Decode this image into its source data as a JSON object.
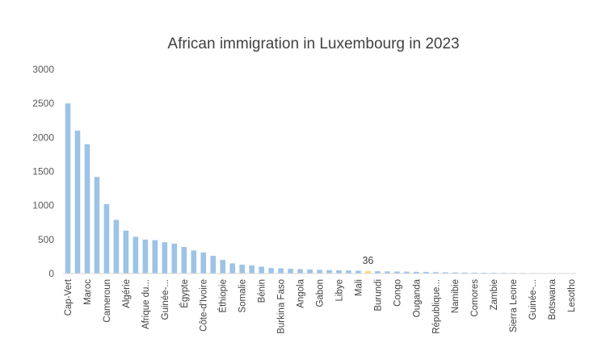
{
  "chart_data": {
    "type": "bar",
    "title": "African immigration in Luxembourg in 2023",
    "xlabel": "",
    "ylabel": "",
    "ylim": [
      0,
      3000
    ],
    "yticks": [
      0,
      500,
      1000,
      1500,
      2000,
      2500,
      3000
    ],
    "ytick_labels": [
      "0",
      "500",
      "1000",
      "1500",
      "2000",
      "2500",
      "3000"
    ],
    "grid": false,
    "legend": "none",
    "colors": {
      "bar": "#9dc3e6",
      "highlight": "#ffd966",
      "axis": "#d9d9d9"
    },
    "highlight_index": 31,
    "data_labels": [
      {
        "index": 31,
        "text": "36"
      }
    ],
    "categories": [
      "Cap-Vert",
      "",
      "Maroc",
      "",
      "Cameroun",
      "",
      "Algérie",
      "",
      "Afrique du...",
      "",
      "Guinée-...",
      "",
      "Égypte",
      "",
      "Côte-d'Ivoire",
      "",
      "Éthiopie",
      "",
      "Somalie",
      "",
      "Bénin",
      "",
      "Burkina Faso",
      "",
      "Angola",
      "",
      "Gabon",
      "",
      "Libye",
      "",
      "Mali",
      "",
      "Burundi",
      "",
      "Congo",
      "",
      "Ouganda",
      "",
      "République...",
      "",
      "Namibie",
      "",
      "Comores",
      "",
      "Zambie",
      "",
      "Sierra Leone",
      "",
      "Guinée-...",
      "",
      "Botswana",
      "",
      "Lesotho"
    ],
    "values": [
      2500,
      2100,
      1900,
      1420,
      1020,
      790,
      630,
      540,
      500,
      490,
      460,
      440,
      390,
      340,
      310,
      260,
      200,
      150,
      130,
      120,
      100,
      80,
      75,
      70,
      65,
      60,
      55,
      50,
      48,
      45,
      42,
      36,
      34,
      32,
      30,
      28,
      25,
      23,
      21,
      19,
      17,
      15,
      13,
      12,
      11,
      10,
      9,
      8,
      7,
      6,
      5,
      4,
      3
    ]
  }
}
